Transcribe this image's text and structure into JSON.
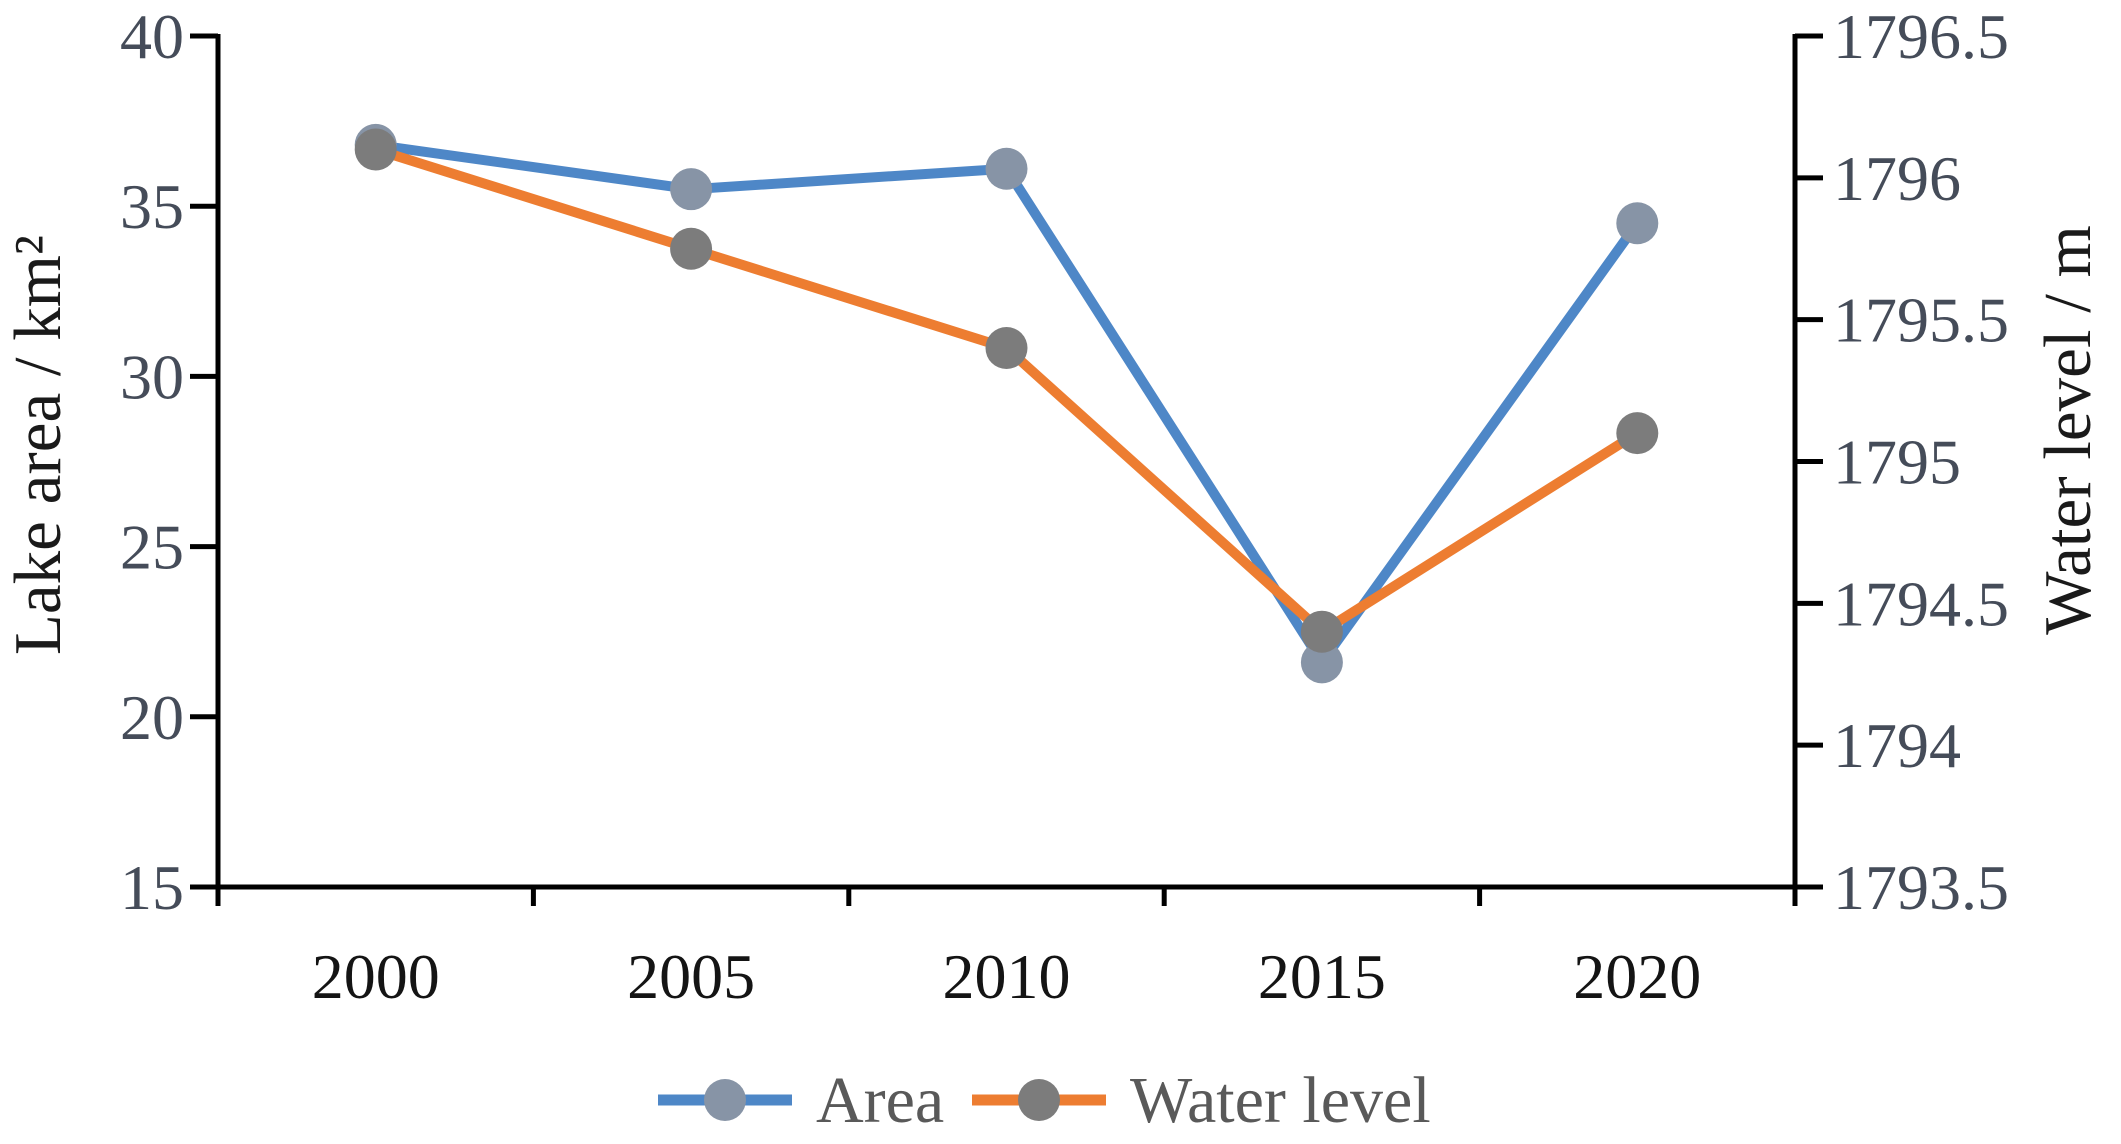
{
  "chart_data": {
    "type": "line",
    "dual_axis": true,
    "title": "",
    "categories": [
      "2000",
      "2005",
      "2010",
      "2015",
      "2020"
    ],
    "series": [
      {
        "name": "Area",
        "axis": "left",
        "line_color": "#4e87c7",
        "marker_color": "#8794a6",
        "values": [
          36.8,
          35.5,
          36.1,
          21.6,
          34.5
        ]
      },
      {
        "name": "Water level",
        "axis": "right",
        "line_color": "#ed7d31",
        "marker_color": "#7c7c7c",
        "values": [
          1796.1,
          1795.75,
          1795.4,
          1794.4,
          1795.1
        ]
      }
    ],
    "left_axis": {
      "title": "Lake area / km²",
      "min": 15,
      "max": 40,
      "tick_step": 5,
      "tick_labels": [
        "15",
        "20",
        "25",
        "30",
        "35",
        "40"
      ]
    },
    "right_axis": {
      "title": "Water level / m",
      "min": 1793.5,
      "max": 1796.5,
      "tick_step": 0.5,
      "tick_labels": [
        "1793.5",
        "1794",
        "1794.5",
        "1795",
        "1795.5",
        "1796",
        "1796.5"
      ]
    },
    "x_axis": {
      "tick_labels": [
        "2000",
        "2005",
        "2010",
        "2015",
        "2020"
      ]
    },
    "legend": {
      "position": "bottom",
      "items": [
        {
          "label": "Area"
        },
        {
          "label": "Water level"
        }
      ]
    },
    "grid": false,
    "background": "#ffffff",
    "axis_color": "#000000"
  }
}
